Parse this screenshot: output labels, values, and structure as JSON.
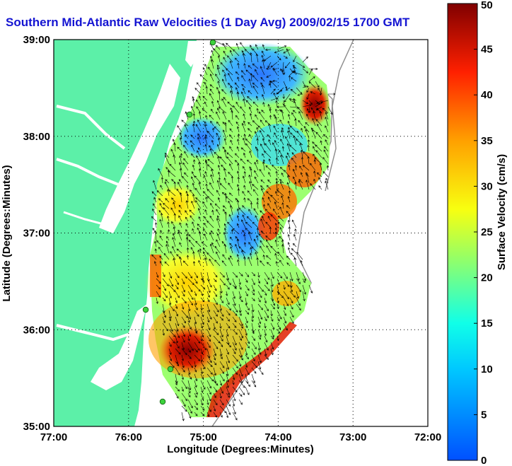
{
  "title": "Southern Mid-Atlantic Raw Velocities (1 Day Avg) 2009/02/15 1700 GMT",
  "map": {
    "xlabel": "Longitude (Degrees:Minutes)",
    "ylabel": "Latitude (Degrees:Minutes)",
    "x_ticks": [
      "77:00",
      "76:00",
      "75:00",
      "74:00",
      "73:00",
      "72:00"
    ],
    "y_ticks": [
      "39:00",
      "38:00",
      "37:00",
      "36:00",
      "35:00"
    ],
    "lon_range": [
      -77,
      -72
    ],
    "lat_range": [
      35,
      39
    ],
    "land_color": "#5cf0a8",
    "water_color": "#ffffff",
    "grid": "dotted"
  },
  "colorbar": {
    "label": "Surface Velocity (cm/s)",
    "ticks": [
      "0",
      "5",
      "10",
      "15",
      "20",
      "25",
      "30",
      "35",
      "40",
      "45",
      "50"
    ],
    "min": 0,
    "max": 50
  },
  "stations": {
    "count_shown": 5,
    "color": "#3cd23c"
  }
}
